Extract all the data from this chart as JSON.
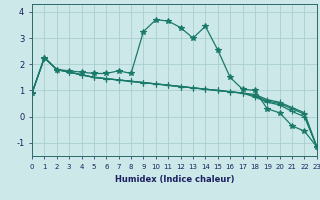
{
  "xlabel": "Humidex (Indice chaleur)",
  "background_color": "#cce8e8",
  "grid_color": "#aacece",
  "line_color": "#1a7a6a",
  "xlim": [
    0,
    23
  ],
  "ylim": [
    -1.5,
    4.3
  ],
  "yticks": [
    -1,
    0,
    1,
    2,
    3,
    4
  ],
  "xticks": [
    0,
    1,
    2,
    3,
    4,
    5,
    6,
    7,
    8,
    9,
    10,
    11,
    12,
    13,
    14,
    15,
    16,
    17,
    18,
    19,
    20,
    21,
    22,
    23
  ],
  "series": [
    [
      0.9,
      2.25,
      1.8,
      1.75,
      1.7,
      1.65,
      1.65,
      1.75,
      1.65,
      3.25,
      3.7,
      3.65,
      3.4,
      3.0,
      3.45,
      2.55,
      1.5,
      1.05,
      1.0,
      0.3,
      0.15,
      -0.35,
      -0.55,
      -1.15
    ],
    [
      0.9,
      2.25,
      1.8,
      1.7,
      1.6,
      1.5,
      1.45,
      1.4,
      1.35,
      1.3,
      1.25,
      1.2,
      1.15,
      1.1,
      1.05,
      1.0,
      0.95,
      0.9,
      0.75,
      0.55,
      0.45,
      0.2,
      0.0,
      -1.15
    ],
    [
      0.9,
      2.25,
      1.8,
      1.7,
      1.6,
      1.5,
      1.45,
      1.4,
      1.35,
      1.3,
      1.25,
      1.2,
      1.15,
      1.1,
      1.05,
      1.0,
      0.95,
      0.9,
      0.8,
      0.6,
      0.5,
      0.3,
      0.1,
      -1.15
    ],
    [
      0.9,
      2.25,
      1.8,
      1.7,
      1.6,
      1.5,
      1.45,
      1.4,
      1.35,
      1.3,
      1.25,
      1.2,
      1.15,
      1.1,
      1.05,
      1.0,
      0.95,
      0.9,
      0.85,
      0.65,
      0.55,
      0.35,
      0.15,
      -1.15
    ]
  ]
}
